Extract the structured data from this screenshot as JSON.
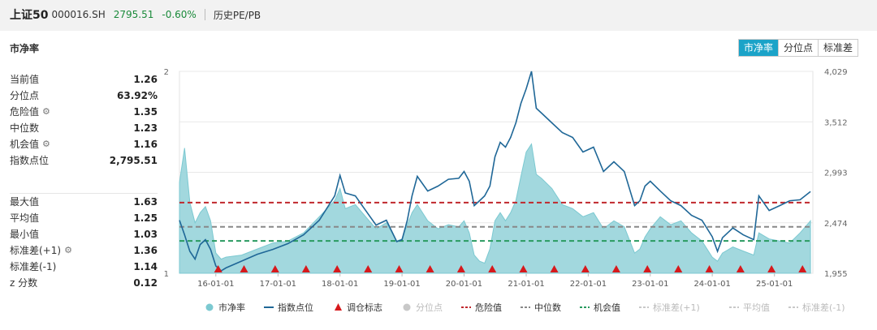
{
  "header": {
    "name": "上证50",
    "code": "000016.SH",
    "price": "2795.51",
    "change": "-0.60%",
    "link": "历史PE/PB"
  },
  "card": {
    "title": "市净率",
    "tabs": [
      {
        "label": "市净率",
        "active": true
      },
      {
        "label": "分位点",
        "active": false
      },
      {
        "label": "标准差",
        "active": false
      }
    ]
  },
  "stats_top": [
    {
      "label": "当前值",
      "value": "1.26",
      "gear": false
    },
    {
      "label": "分位点",
      "value": "63.92%",
      "gear": false
    },
    {
      "label": "危险值",
      "value": "1.35",
      "gear": true
    },
    {
      "label": "中位数",
      "value": "1.23",
      "gear": false
    },
    {
      "label": "机会值",
      "value": "1.16",
      "gear": true
    },
    {
      "label": "指数点位",
      "value": "2,795.51",
      "gear": false
    }
  ],
  "stats_bottom": [
    {
      "label": "最大值",
      "value": "1.63",
      "gear": false
    },
    {
      "label": "平均值",
      "value": "1.25",
      "gear": false
    },
    {
      "label": "最小值",
      "value": "1.03",
      "gear": false
    },
    {
      "label": "标准差(+1)",
      "value": "1.36",
      "gear": true
    },
    {
      "label": "标准差(-1)",
      "value": "1.14",
      "gear": false
    },
    {
      "label": "z 分数",
      "value": "0.12",
      "gear": false
    }
  ],
  "colors": {
    "pb_fill": "#9dd6dc",
    "pb_stroke": "#7cc9d1",
    "index_line": "#1f6797",
    "danger": "#c0282d",
    "median": "#888888",
    "opportunity": "#2a9a60",
    "marker": "#d7191c",
    "tab_active": "#1ba3c8",
    "legend_dim": "#c8c8c8"
  },
  "chart_data": {
    "type": "area",
    "x_ticks": [
      "16-01-01",
      "17-01-01",
      "18-01-01",
      "19-01-01",
      "20-01-01",
      "21-01-01",
      "22-01-01",
      "23-01-01",
      "24-01-01",
      "25-01-01"
    ],
    "x_range": [
      "2015-06-01",
      "2025-08-15"
    ],
    "y_left": {
      "range": [
        1,
        2
      ],
      "ticks": [
        "2",
        "1"
      ]
    },
    "y_right": {
      "range": [
        1955,
        4029
      ],
      "ticks": [
        "4,029",
        "3,512",
        "2,993",
        "2,474",
        "1,955"
      ]
    },
    "reference_lines": {
      "danger": 1.35,
      "median": 1.23,
      "opportunity": 1.16
    },
    "pb_series": {
      "name": "市净率",
      "x": [
        "2015-06-01",
        "2015-07-01",
        "2015-08-01",
        "2015-09-01",
        "2015-10-01",
        "2015-11-01",
        "2015-12-01",
        "2016-01-01",
        "2016-02-01",
        "2016-03-01",
        "2016-06-01",
        "2016-09-01",
        "2016-12-01",
        "2017-03-01",
        "2017-06-01",
        "2017-09-01",
        "2017-12-01",
        "2018-01-01",
        "2018-02-01",
        "2018-04-01",
        "2018-06-01",
        "2018-08-01",
        "2018-10-01",
        "2018-12-01",
        "2019-01-01",
        "2019-02-01",
        "2019-03-01",
        "2019-04-01",
        "2019-06-01",
        "2019-08-01",
        "2019-10-01",
        "2019-12-01",
        "2020-01-01",
        "2020-02-01",
        "2020-03-01",
        "2020-04-01",
        "2020-05-01",
        "2020-06-01",
        "2020-07-01",
        "2020-08-01",
        "2020-09-01",
        "2020-10-01",
        "2020-11-01",
        "2020-12-01",
        "2021-01-01",
        "2021-02-01",
        "2021-03-01",
        "2021-04-01",
        "2021-06-01",
        "2021-08-01",
        "2021-10-01",
        "2021-12-01",
        "2022-02-01",
        "2022-04-01",
        "2022-06-01",
        "2022-08-01",
        "2022-10-01",
        "2022-11-01",
        "2022-12-01",
        "2023-01-01",
        "2023-03-01",
        "2023-05-01",
        "2023-07-01",
        "2023-09-01",
        "2023-11-01",
        "2024-01-01",
        "2024-02-01",
        "2024-03-01",
        "2024-05-01",
        "2024-07-01",
        "2024-09-01",
        "2024-10-01",
        "2024-12-01",
        "2025-02-01",
        "2025-04-01",
        "2025-06-01",
        "2025-08-01"
      ],
      "values": [
        1.45,
        1.62,
        1.35,
        1.25,
        1.3,
        1.33,
        1.26,
        1.1,
        1.07,
        1.08,
        1.09,
        1.12,
        1.15,
        1.16,
        1.2,
        1.28,
        1.36,
        1.42,
        1.32,
        1.34,
        1.28,
        1.22,
        1.25,
        1.16,
        1.17,
        1.24,
        1.3,
        1.34,
        1.26,
        1.22,
        1.24,
        1.23,
        1.26,
        1.2,
        1.09,
        1.06,
        1.05,
        1.12,
        1.26,
        1.3,
        1.26,
        1.3,
        1.36,
        1.48,
        1.6,
        1.64,
        1.49,
        1.47,
        1.42,
        1.34,
        1.32,
        1.28,
        1.3,
        1.22,
        1.26,
        1.23,
        1.1,
        1.12,
        1.18,
        1.22,
        1.28,
        1.24,
        1.26,
        1.2,
        1.16,
        1.08,
        1.06,
        1.1,
        1.13,
        1.11,
        1.09,
        1.2,
        1.17,
        1.16,
        1.15,
        1.2,
        1.26
      ]
    },
    "index_series": {
      "name": "指数点位",
      "x": [
        "2015-06-01",
        "2015-07-01",
        "2015-08-01",
        "2015-09-01",
        "2015-10-01",
        "2015-11-01",
        "2015-12-01",
        "2016-01-01",
        "2016-02-01",
        "2016-03-01",
        "2016-06-01",
        "2016-09-01",
        "2016-12-01",
        "2017-03-01",
        "2017-06-01",
        "2017-09-01",
        "2017-12-01",
        "2018-01-01",
        "2018-02-01",
        "2018-04-01",
        "2018-06-01",
        "2018-08-01",
        "2018-10-01",
        "2018-12-01",
        "2019-01-01",
        "2019-02-01",
        "2019-03-01",
        "2019-04-01",
        "2019-06-01",
        "2019-08-01",
        "2019-10-01",
        "2019-12-01",
        "2020-01-01",
        "2020-02-01",
        "2020-03-01",
        "2020-04-01",
        "2020-05-01",
        "2020-06-01",
        "2020-07-01",
        "2020-08-01",
        "2020-09-01",
        "2020-10-01",
        "2020-11-01",
        "2020-12-01",
        "2021-01-01",
        "2021-02-01",
        "2021-03-01",
        "2021-04-01",
        "2021-06-01",
        "2021-08-01",
        "2021-10-01",
        "2021-12-01",
        "2022-02-01",
        "2022-04-01",
        "2022-06-01",
        "2022-08-01",
        "2022-10-01",
        "2022-11-01",
        "2022-12-01",
        "2023-01-01",
        "2023-03-01",
        "2023-05-01",
        "2023-07-01",
        "2023-09-01",
        "2023-11-01",
        "2024-01-01",
        "2024-02-01",
        "2024-03-01",
        "2024-05-01",
        "2024-07-01",
        "2024-09-01",
        "2024-10-01",
        "2024-12-01",
        "2025-02-01",
        "2025-04-01",
        "2025-06-01",
        "2025-08-01"
      ],
      "values": [
        2500,
        2350,
        2180,
        2100,
        2250,
        2300,
        2200,
        2030,
        1980,
        2010,
        2080,
        2150,
        2200,
        2260,
        2350,
        2500,
        2750,
        2960,
        2780,
        2750,
        2600,
        2450,
        2500,
        2280,
        2300,
        2500,
        2750,
        2950,
        2800,
        2850,
        2920,
        2930,
        3000,
        2900,
        2650,
        2700,
        2750,
        2850,
        3150,
        3300,
        3250,
        3350,
        3500,
        3700,
        3850,
        4029,
        3650,
        3600,
        3500,
        3400,
        3350,
        3200,
        3250,
        3000,
        3100,
        3000,
        2650,
        2700,
        2850,
        2900,
        2800,
        2700,
        2650,
        2550,
        2500,
        2330,
        2180,
        2320,
        2420,
        2350,
        2300,
        2750,
        2600,
        2650,
        2700,
        2710,
        2795
      ]
    },
    "markers": {
      "name": "调仓标志",
      "x": [
        "2016-01-15",
        "2016-06-15",
        "2016-12-15",
        "2017-06-15",
        "2017-12-15",
        "2018-06-15",
        "2018-12-15",
        "2019-06-15",
        "2019-12-15",
        "2020-06-15",
        "2020-12-15",
        "2021-06-15",
        "2021-12-15",
        "2022-06-15",
        "2022-12-15",
        "2023-06-15",
        "2023-12-15",
        "2024-06-15",
        "2024-12-15",
        "2025-06-15"
      ]
    },
    "legend": [
      {
        "name": "市净率",
        "shape": "dot",
        "color": "#7cc9d1",
        "active": true
      },
      {
        "name": "指数点位",
        "shape": "line",
        "color": "#1f6797",
        "active": true
      },
      {
        "name": "调仓标志",
        "shape": "triangle",
        "color": "#d7191c",
        "active": true
      },
      {
        "name": "分位点",
        "shape": "dot",
        "color": "#c8c8c8",
        "active": false
      },
      {
        "name": "危险值",
        "shape": "dash",
        "color": "#c0282d",
        "active": true
      },
      {
        "name": "中位数",
        "shape": "dash",
        "color": "#888888",
        "active": true
      },
      {
        "name": "机会值",
        "shape": "dash",
        "color": "#2a9a60",
        "active": true
      },
      {
        "name": "标准差(+1)",
        "shape": "dash",
        "color": "#c8c8c8",
        "active": false
      },
      {
        "name": "平均值",
        "shape": "dash",
        "color": "#c8c8c8",
        "active": false
      },
      {
        "name": "标准差(-1)",
        "shape": "dash",
        "color": "#c8c8c8",
        "active": false
      }
    ]
  }
}
